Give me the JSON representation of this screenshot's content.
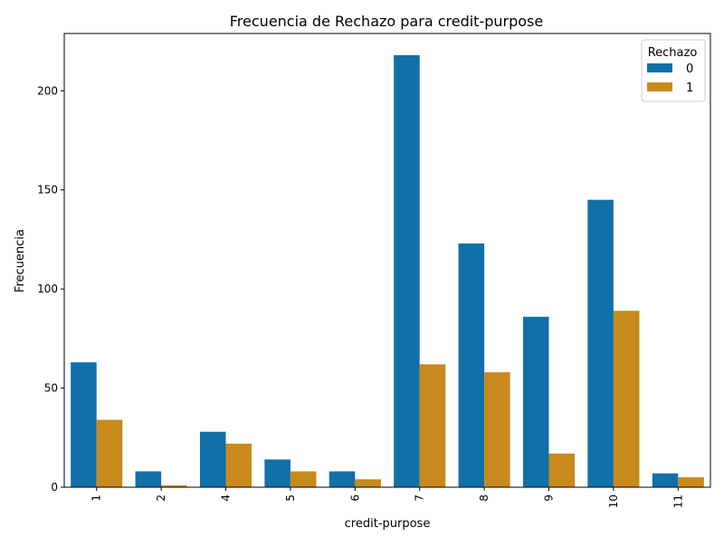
{
  "chart_data": {
    "type": "bar",
    "title": "Frecuencia de Rechazo para credit-purpose",
    "xlabel": "credit-purpose",
    "ylabel": "Frecuencia",
    "categories": [
      "1",
      "2",
      "4",
      "5",
      "6",
      "7",
      "8",
      "9",
      "10",
      "11"
    ],
    "series": [
      {
        "name": "0",
        "color": "#1170aa",
        "values": [
          63,
          8,
          28,
          14,
          8,
          218,
          123,
          86,
          145,
          7
        ]
      },
      {
        "name": "1",
        "color": "#c88a1d",
        "values": [
          34,
          1,
          22,
          8,
          4,
          62,
          58,
          17,
          89,
          5
        ]
      }
    ],
    "ylim": [
      0,
      228.9
    ],
    "yticks": [
      0,
      50,
      100,
      150,
      200
    ],
    "legend": {
      "title": "Rechazo",
      "placement": "top-right"
    },
    "grid": false
  }
}
